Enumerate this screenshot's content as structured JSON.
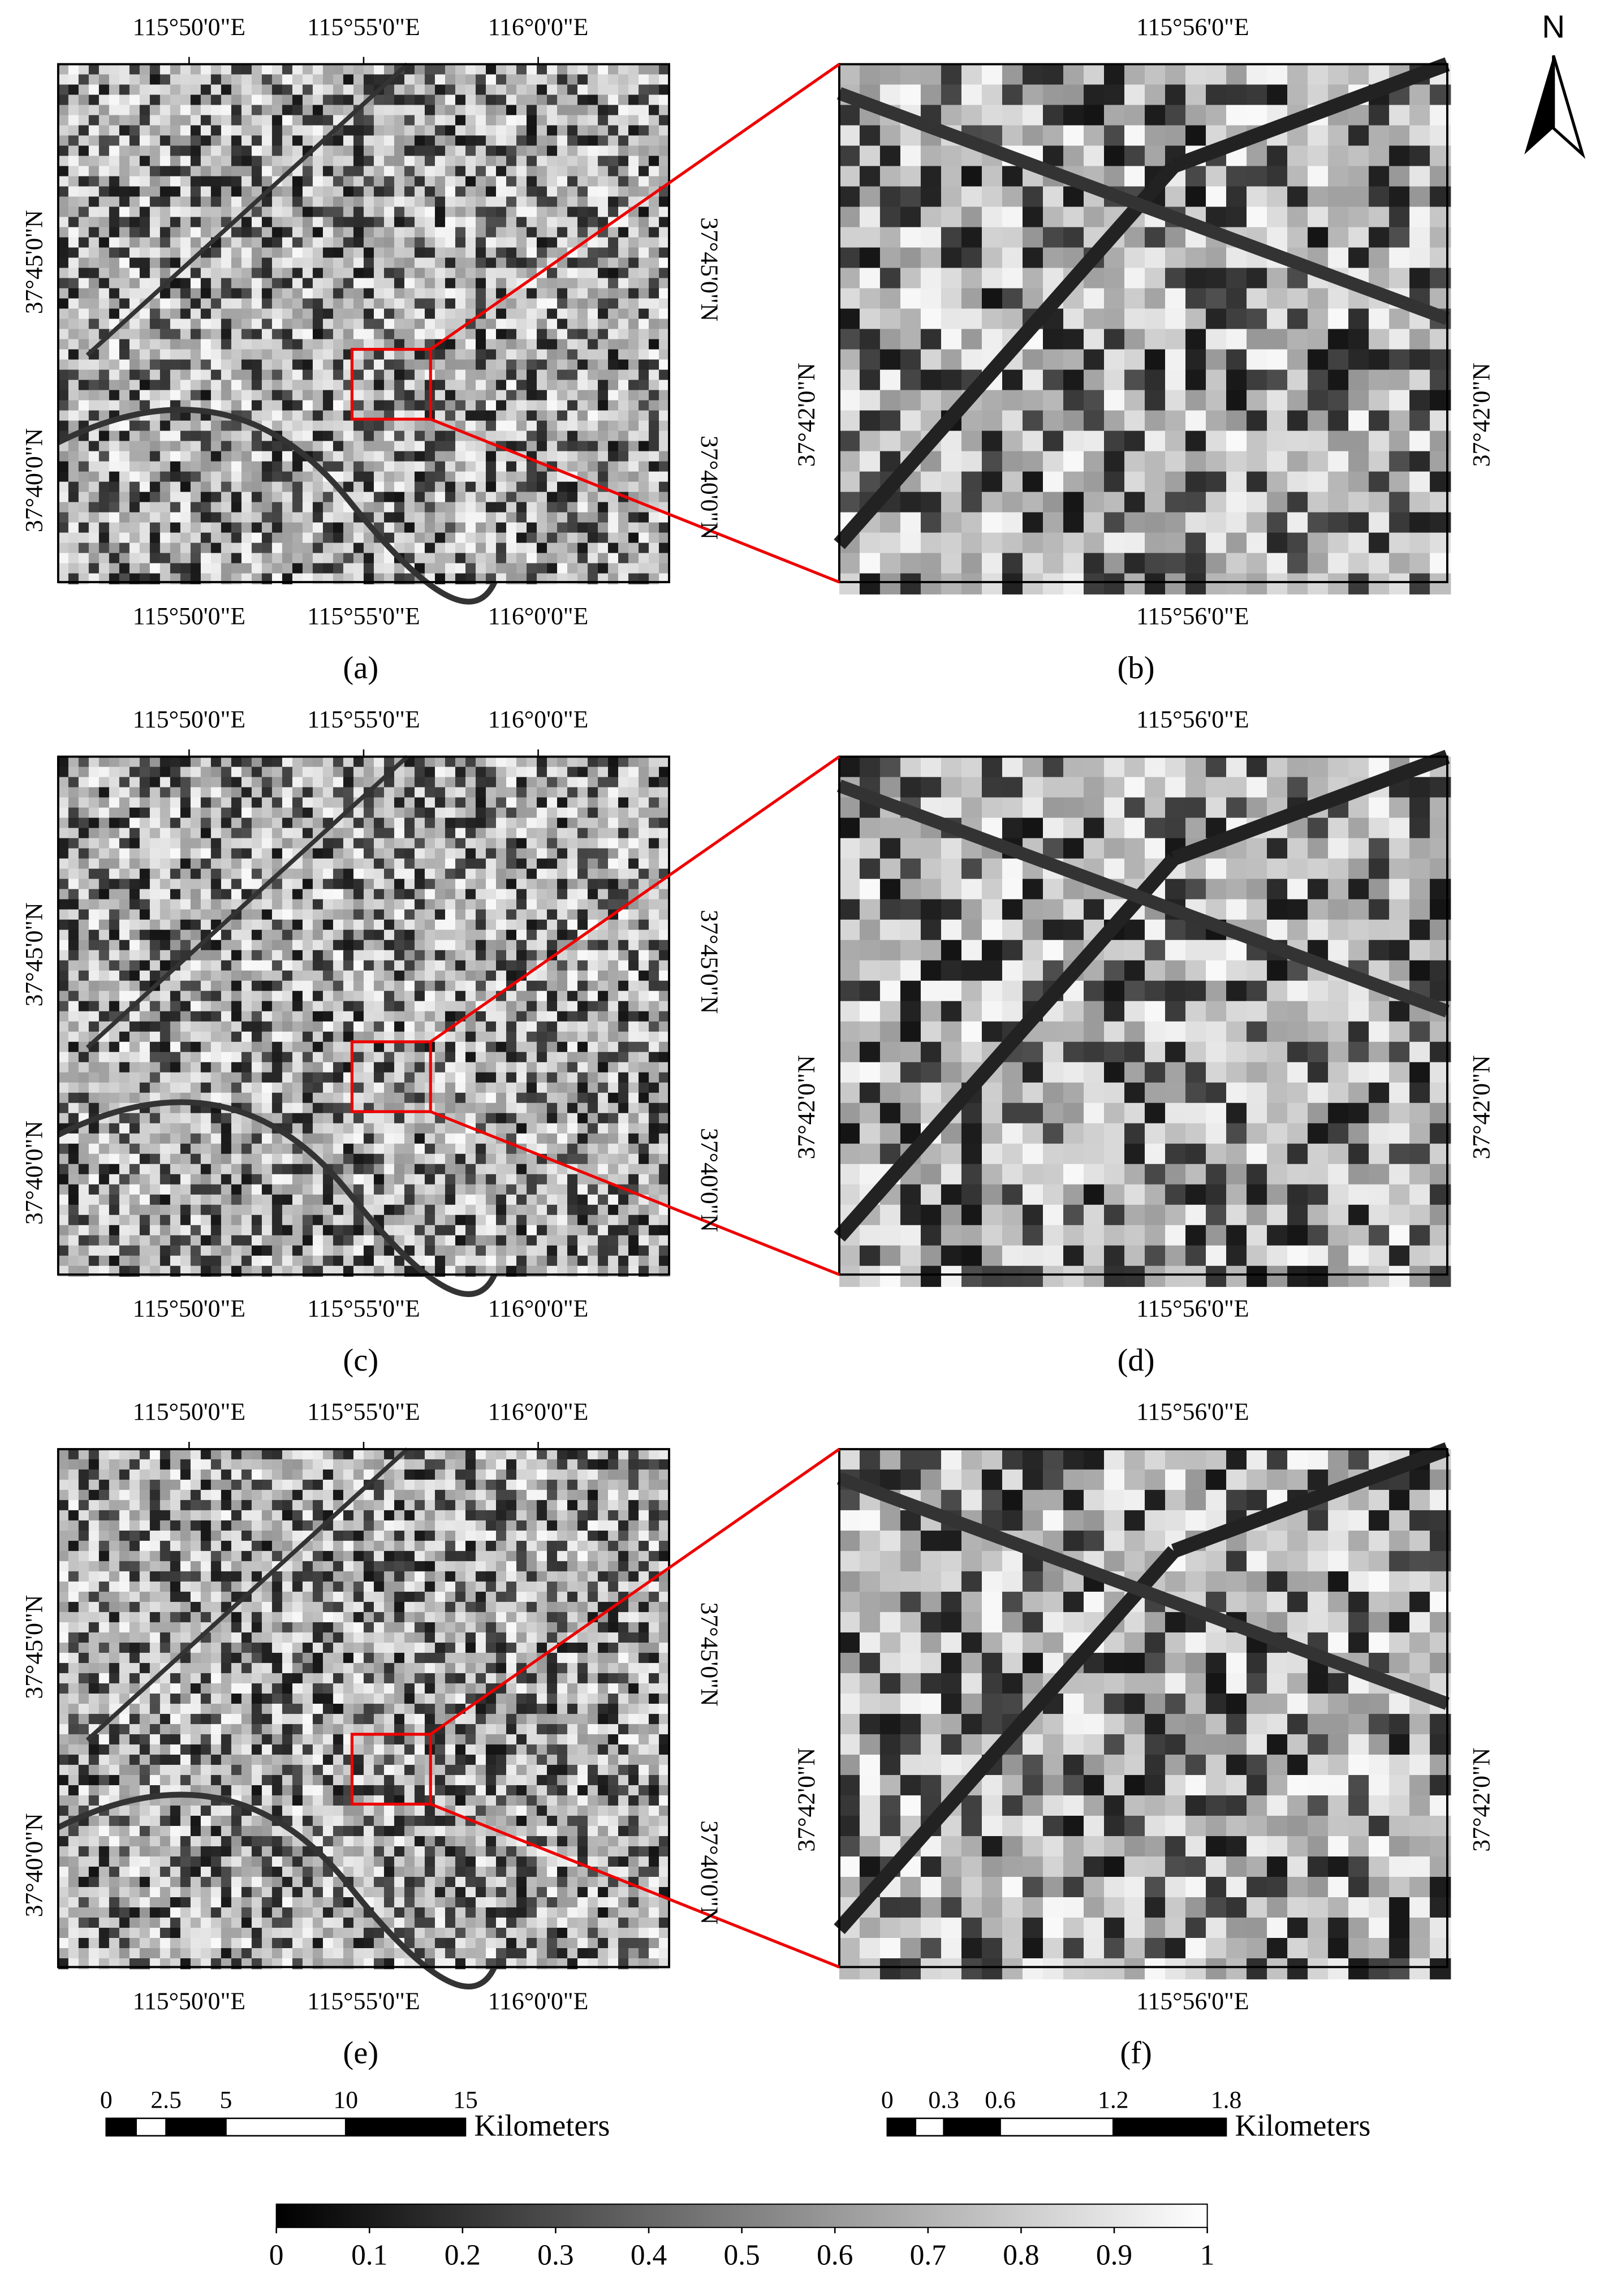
{
  "north_arrow": "N",
  "rows": [
    {
      "overview": {
        "top_labels": [
          "115°50'0\"E",
          "115°55'0\"E",
          "116°0'0\"E"
        ],
        "bottom_labels": [
          "115°50'0\"E",
          "115°55'0\"E",
          "116°0'0\"E"
        ],
        "left_labels": [
          "37°45'0\"N",
          "37°40'0\"N"
        ],
        "right_labels": [
          "37°45'0\"N",
          "37°40'0\"N"
        ]
      },
      "zoom": {
        "top_label": "115°56'0\"E",
        "bottom_label": "115°56'0\"E",
        "left_label": "37°42'0\"N",
        "right_label": "37°42'0\"N"
      },
      "overview_caption": "(a)",
      "zoom_caption": "(b)"
    },
    {
      "overview": {
        "top_labels": [
          "115°50'0\"E",
          "115°55'0\"E",
          "116°0'0\"E"
        ],
        "bottom_labels": [
          "115°50'0\"E",
          "115°55'0\"E",
          "116°0'0\"E"
        ],
        "left_labels": [
          "37°45'0\"N",
          "37°40'0\"N"
        ],
        "right_labels": [
          "37°45'0\"N",
          "37°40'0\"N"
        ]
      },
      "zoom": {
        "top_label": "115°56'0\"E",
        "bottom_label": "115°56'0\"E",
        "left_label": "37°42'0\"N",
        "right_label": "37°42'0\"N"
      },
      "overview_caption": "(c)",
      "zoom_caption": "(d)"
    },
    {
      "overview": {
        "top_labels": [
          "115°50'0\"E",
          "115°55'0\"E",
          "116°0'0\"E"
        ],
        "bottom_labels": [
          "115°50'0\"E",
          "115°55'0\"E",
          "116°0'0\"E"
        ],
        "left_labels": [
          "37°45'0\"N",
          "37°40'0\"N"
        ],
        "right_labels": [
          "37°45'0\"N",
          "37°40'0\"N"
        ]
      },
      "zoom": {
        "top_label": "115°56'0\"E",
        "bottom_label": "115°56'0\"E",
        "left_label": "37°42'0\"N",
        "right_label": "37°42'0\"N"
      },
      "overview_caption": "(e)",
      "zoom_caption": "(f)"
    }
  ],
  "scale_bars": [
    {
      "ticks": [
        0,
        2.5,
        5,
        10,
        15
      ],
      "unit": "Kilometers"
    },
    {
      "ticks": [
        0,
        0.3,
        0.6,
        1.2,
        1.8
      ],
      "unit": "Kilometers"
    }
  ],
  "colorbar": {
    "ticks": [
      0,
      0.1,
      0.2,
      0.3,
      0.4,
      0.5,
      0.6,
      0.7,
      0.8,
      0.9,
      1
    ]
  }
}
